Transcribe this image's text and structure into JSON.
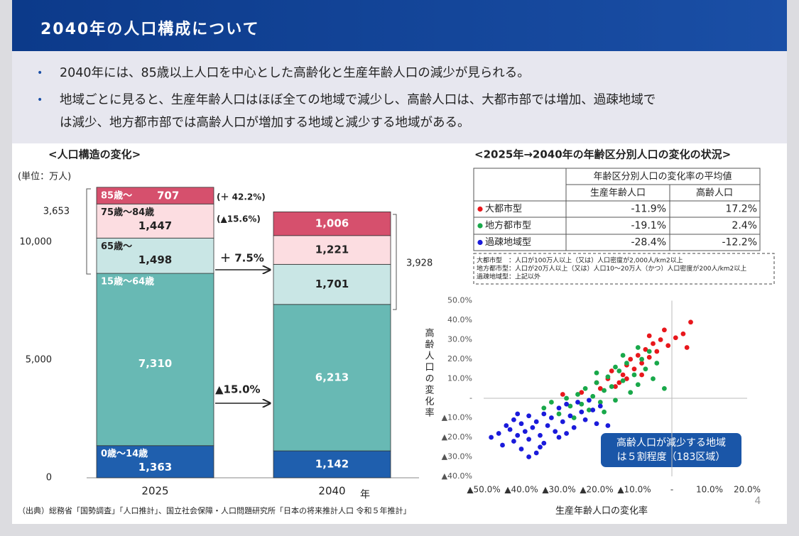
{
  "header": {
    "title": "2040年の人口構成について"
  },
  "bullets": [
    [
      "2040年には、85歳以上人口を中心とした高齢化と生産年齢人口の減少が見られる。"
    ],
    [
      "地域ごとに見ると、生産年齢人口はほぼ全ての地域で減少し、高齢人口は、大都市部では増加、過疎地域で",
      "は減少、地方都市部では高齢人口が増加する地域と減少する地域がある。"
    ]
  ],
  "chart_data": [
    {
      "type": "stacked_bar",
      "title": "<人口構造の変化>",
      "unit_label": "(単位：万人)",
      "x_unit": "年",
      "categories": [
        "2025",
        "2040"
      ],
      "series": [
        {
          "name": "0歳〜14歳",
          "color": "#1f5fae",
          "values": [
            1363,
            1142
          ],
          "value_labels": [
            "1,363",
            "1,142"
          ]
        },
        {
          "name": "15歳〜64歳",
          "color": "#68b9b4",
          "values": [
            7310,
            6213
          ],
          "value_labels": [
            "7,310",
            "6,213"
          ]
        },
        {
          "name": "65歳〜",
          "color": "#c9e6e5",
          "values": [
            1498,
            1701
          ],
          "value_labels": [
            "1,498",
            "1,701"
          ]
        },
        {
          "name": "75歳〜84歳",
          "color": "#fcdde1",
          "values": [
            1447,
            1221
          ],
          "value_labels": [
            "1,447",
            "1,221"
          ]
        },
        {
          "name": "85歳〜",
          "color": "#d6506d",
          "values": [
            707,
            1006
          ],
          "value_labels": [
            "707",
            "1,006"
          ]
        }
      ],
      "ylim": [
        0,
        12500
      ],
      "yticks": [
        0,
        {
          "value": 5000,
          "label": "5,000"
        },
        {
          "value": 10000,
          "label": "10,000"
        }
      ],
      "annotations": [
        "(＋ 42.2%)",
        "(▲15.6%)",
        "＋ 7.5%",
        "▲15.0%",
        "3,653",
        "3,928"
      ]
    },
    {
      "type": "scatter",
      "title": "<2025年→2040年の年齢区分別人口の変化の状況>",
      "x_label": "生産年齢人口の変化率",
      "y_label": "高齢人口の変化率",
      "xlim": [
        -50,
        20
      ],
      "ylim": [
        -40,
        50
      ],
      "xticks": [
        {
          "value": -50,
          "label": "▲50.0%"
        },
        {
          "value": -40,
          "label": "▲40.0%"
        },
        {
          "value": -30,
          "label": "▲30.0%"
        },
        {
          "value": -20,
          "label": "▲20.0%"
        },
        {
          "value": -10,
          "label": "▲10.0%"
        },
        {
          "value": 0,
          "label": "-"
        },
        {
          "value": 10,
          "label": "10.0%"
        },
        {
          "value": 20,
          "label": "20.0%"
        }
      ],
      "yticks": [
        {
          "value": -40,
          "label": "▲40.0%"
        },
        {
          "value": -30,
          "label": "▲30.0%"
        },
        {
          "value": -20,
          "label": "▲20.0%"
        },
        {
          "value": -10,
          "label": "▲10.0%"
        },
        {
          "value": 0,
          "label": "-"
        },
        {
          "value": 10,
          "label": "10.0%"
        },
        {
          "value": 20,
          "label": "20.0%"
        },
        {
          "value": 30,
          "label": "30.0%"
        },
        {
          "value": 40,
          "label": "40.0%"
        },
        {
          "value": 50,
          "label": "50.0%"
        }
      ],
      "callout": [
        "高齢人口が減少する地域",
        "は５割程度（183区域）"
      ],
      "series": [
        {
          "name": "大都市型",
          "color": "#e8171c",
          "x": [
            -29,
            -24,
            -20,
            -19,
            -17,
            -16,
            -14,
            -13,
            -12,
            -11,
            -10,
            -9,
            -8,
            -7,
            -6,
            -5,
            -4,
            -3,
            -1,
            1,
            -2,
            3,
            4,
            -6,
            5,
            -12,
            -15,
            -8
          ],
          "values": [
            2,
            3,
            8,
            5,
            10,
            14,
            8,
            12,
            17,
            20,
            15,
            22,
            18,
            25,
            21,
            28,
            24,
            30,
            27,
            31,
            35,
            33,
            26,
            32,
            39,
            10,
            6,
            12
          ]
        },
        {
          "name": "地方都市型",
          "color": "#19a84a",
          "x": [
            -34,
            -32,
            -30,
            -28,
            -27,
            -26,
            -25,
            -24,
            -23,
            -22,
            -21,
            -20,
            -19,
            -18,
            -17,
            -16,
            -15,
            -14,
            -13,
            -12,
            -11,
            -10,
            -9,
            -8,
            -7,
            -6,
            -5,
            -4,
            -2,
            -9,
            -13,
            -18,
            -20,
            -15
          ],
          "values": [
            -5,
            -2,
            -8,
            0,
            -4,
            -10,
            2,
            -3,
            5,
            -6,
            1,
            8,
            -2,
            4,
            11,
            6,
            -1,
            14,
            9,
            18,
            3,
            12,
            7,
            20,
            15,
            24,
            10,
            18,
            5,
            26,
            22,
            -7,
            13,
            16
          ]
        },
        {
          "name": "過疎地域型",
          "color": "#1a1adb",
          "x": [
            -48,
            -46,
            -45,
            -44,
            -43,
            -42,
            -42,
            -41,
            -40,
            -40,
            -39,
            -38,
            -38,
            -37,
            -36,
            -36,
            -35,
            -34,
            -34,
            -33,
            -32,
            -31,
            -30,
            -30,
            -29,
            -28,
            -27,
            -26,
            -25,
            -24,
            -23,
            -22,
            -21,
            -20,
            -19,
            -38,
            -41,
            -35,
            -28,
            -17
          ],
          "values": [
            -20,
            -18,
            -24,
            -14,
            -16,
            -22,
            -11,
            -19,
            -26,
            -13,
            -17,
            -21,
            -9,
            -15,
            -28,
            -12,
            -19,
            -8,
            -23,
            -14,
            -10,
            -17,
            -5,
            -20,
            -12,
            -3,
            -9,
            -15,
            -2,
            -7,
            -11,
            -1,
            -6,
            -13,
            -4,
            -30,
            -8,
            -25,
            -18,
            -14
          ]
        }
      ]
    }
  ],
  "table": {
    "header": "年齢区分別人口の変化率の平均値",
    "subheaders": [
      "生産年齢人口",
      "高齢人口"
    ],
    "rows": [
      [
        "-11.9%",
        "17.2%"
      ],
      [
        "-19.1%",
        "2.4%"
      ],
      [
        "-28.4%",
        "-12.2%"
      ]
    ]
  },
  "notes": [
    "大都市型　：人口が100万人以上（又は）人口密度が2,000人/km2以上",
    "地方都市型：人口が20万人以上（又は）人口10〜20万人（かつ）人口密度が200人/km2以上",
    "過疎地域型：上記以外"
  ],
  "source": "（出典）総務省「国勢調査」「人口推計」、国立社会保障・人口問題研究所「日本の将来推計人口 令和５年推計」",
  "page_number": "4"
}
